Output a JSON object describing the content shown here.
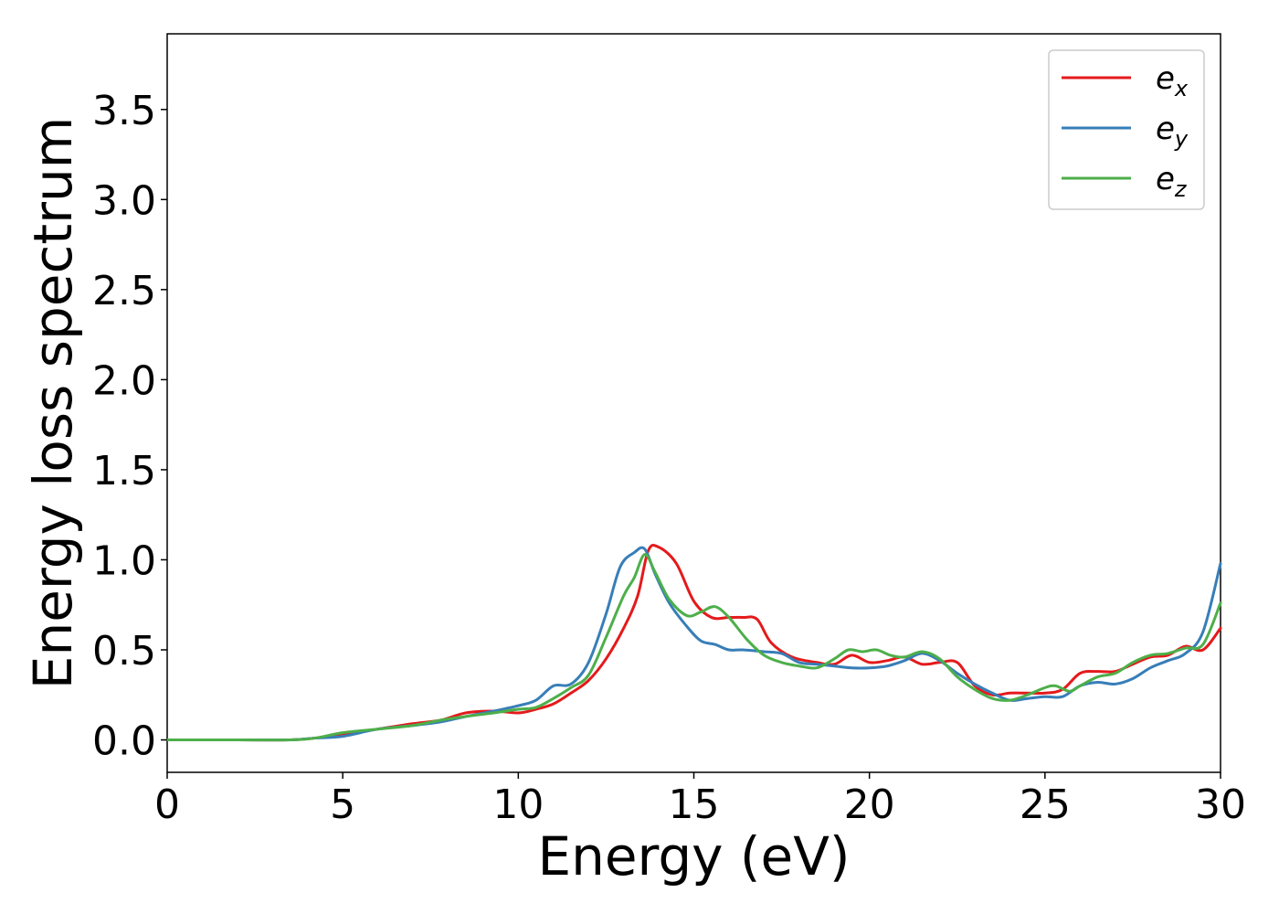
{
  "chart_data": {
    "type": "line",
    "title": "",
    "xlabel": "Energy (eV)",
    "ylabel": "Energy loss spectrum",
    "xlim": [
      0,
      30
    ],
    "ylim": [
      -0.18,
      3.92
    ],
    "x_ticks": [
      0,
      5,
      10,
      15,
      20,
      25,
      30
    ],
    "x_tick_labels": [
      "0",
      "5",
      "10",
      "15",
      "20",
      "25",
      "30"
    ],
    "y_ticks": [
      0.0,
      0.5,
      1.0,
      1.5,
      2.0,
      2.5,
      3.0,
      3.5
    ],
    "y_tick_labels": [
      "0.0",
      "0.5",
      "1.0",
      "1.5",
      "2.0",
      "2.5",
      "3.0",
      "3.5"
    ],
    "grid": false,
    "legend_position": "top-right",
    "series": [
      {
        "name": "e",
        "subscript": "x",
        "color": "#e41a1c",
        "x": [
          0,
          2,
          3.5,
          4.2,
          5,
          6,
          7,
          7.8,
          8.5,
          9.3,
          10,
          10.5,
          11,
          11.5,
          12,
          12.5,
          13,
          13.4,
          13.7,
          14,
          14.5,
          15,
          15.5,
          16,
          16.4,
          16.8,
          17.2,
          17.8,
          18.5,
          19,
          19.5,
          20,
          20.5,
          21,
          21.5,
          22,
          22.5,
          23,
          23.5,
          24,
          24.5,
          25,
          25.5,
          26,
          26.5,
          27,
          27.5,
          28,
          28.5,
          29,
          29.5,
          30
        ],
        "y": [
          0.0,
          0.0,
          0.0,
          0.01,
          0.03,
          0.06,
          0.09,
          0.11,
          0.15,
          0.16,
          0.15,
          0.17,
          0.2,
          0.26,
          0.33,
          0.45,
          0.62,
          0.8,
          1.05,
          1.07,
          0.98,
          0.77,
          0.68,
          0.68,
          0.68,
          0.67,
          0.54,
          0.46,
          0.43,
          0.42,
          0.47,
          0.43,
          0.44,
          0.46,
          0.42,
          0.43,
          0.43,
          0.3,
          0.25,
          0.26,
          0.26,
          0.26,
          0.28,
          0.37,
          0.38,
          0.38,
          0.42,
          0.46,
          0.47,
          0.52,
          0.5,
          0.62
        ]
      },
      {
        "name": "e",
        "subscript": "y",
        "color": "#377eb8",
        "x": [
          0,
          2,
          3.5,
          4.2,
          5,
          6,
          7,
          7.8,
          8.5,
          9.3,
          10,
          10.5,
          11,
          11.5,
          12,
          12.5,
          12.9,
          13.3,
          13.6,
          13.9,
          14.3,
          14.8,
          15.2,
          15.6,
          16,
          16.4,
          17,
          17.5,
          18,
          18.5,
          19,
          19.5,
          20,
          20.5,
          21,
          21.5,
          22,
          22.5,
          23,
          23.5,
          24,
          24.5,
          25,
          25.5,
          26,
          26.5,
          27,
          27.5,
          28,
          28.5,
          29,
          29.5,
          30
        ],
        "y": [
          0.0,
          0.0,
          0.0,
          0.01,
          0.02,
          0.06,
          0.08,
          0.1,
          0.13,
          0.16,
          0.19,
          0.22,
          0.3,
          0.31,
          0.43,
          0.7,
          0.96,
          1.04,
          1.06,
          0.92,
          0.76,
          0.63,
          0.55,
          0.53,
          0.5,
          0.5,
          0.49,
          0.48,
          0.43,
          0.42,
          0.41,
          0.4,
          0.4,
          0.41,
          0.44,
          0.48,
          0.44,
          0.37,
          0.31,
          0.26,
          0.22,
          0.23,
          0.24,
          0.24,
          0.3,
          0.32,
          0.31,
          0.34,
          0.4,
          0.44,
          0.48,
          0.6,
          0.98
        ]
      },
      {
        "name": "e",
        "subscript": "z",
        "color": "#4daf4a",
        "x": [
          0,
          2,
          3.5,
          4.2,
          5,
          6,
          7,
          7.8,
          8.5,
          9.3,
          10,
          10.5,
          11,
          11.5,
          12,
          12.5,
          13,
          13.3,
          13.6,
          13.9,
          14.3,
          14.8,
          15.2,
          15.6,
          16,
          16.5,
          17,
          17.5,
          18,
          18.5,
          19,
          19.4,
          19.8,
          20.2,
          20.6,
          21,
          21.5,
          22,
          22.5,
          23,
          23.5,
          24,
          24.5,
          25,
          25.3,
          25.7,
          26,
          26.5,
          27,
          27.5,
          28,
          28.5,
          29,
          29.5,
          30
        ],
        "y": [
          0.0,
          0.0,
          0.0,
          0.01,
          0.04,
          0.06,
          0.08,
          0.11,
          0.13,
          0.15,
          0.17,
          0.18,
          0.23,
          0.29,
          0.36,
          0.57,
          0.8,
          0.9,
          1.03,
          0.93,
          0.78,
          0.69,
          0.71,
          0.74,
          0.68,
          0.56,
          0.47,
          0.43,
          0.41,
          0.4,
          0.45,
          0.5,
          0.49,
          0.5,
          0.47,
          0.46,
          0.49,
          0.45,
          0.35,
          0.28,
          0.23,
          0.22,
          0.25,
          0.29,
          0.3,
          0.27,
          0.3,
          0.35,
          0.37,
          0.43,
          0.47,
          0.48,
          0.51,
          0.53,
          0.76
        ]
      }
    ]
  }
}
